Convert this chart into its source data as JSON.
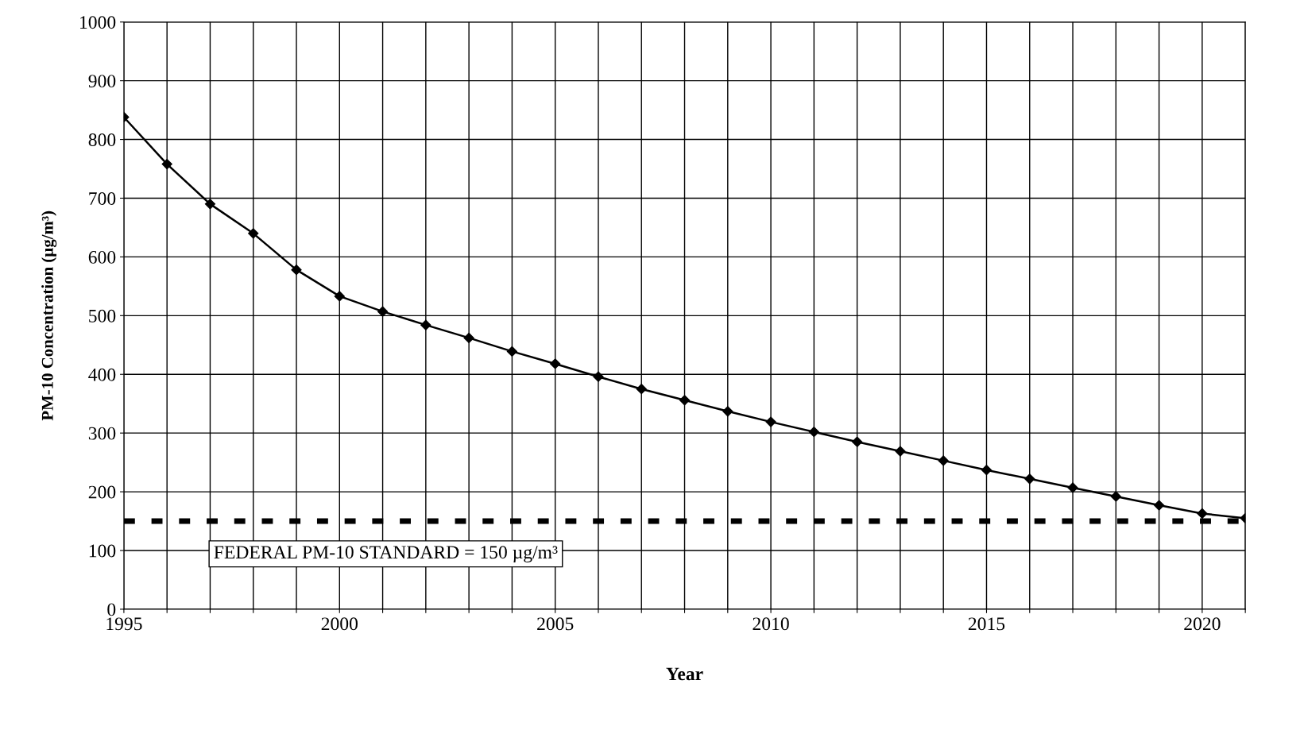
{
  "chart_data": {
    "type": "line",
    "xlabel": "Year",
    "ylabel": "PM-10 Concentration (µg/m³)",
    "x": [
      1995,
      1996,
      1997,
      1998,
      1999,
      2000,
      2001,
      2002,
      2003,
      2004,
      2005,
      2006,
      2007,
      2008,
      2009,
      2010,
      2011,
      2012,
      2013,
      2014,
      2015,
      2016,
      2017,
      2018,
      2019,
      2020,
      2021
    ],
    "series": [
      {
        "color": "#000000",
        "values": [
          838,
          758,
          690,
          640,
          578,
          533,
          507,
          484,
          462,
          439,
          418,
          396,
          375,
          356,
          337,
          319,
          302,
          285,
          269,
          253,
          237,
          222,
          207,
          192,
          177,
          163,
          155
        ]
      }
    ],
    "marker": "diamond",
    "line_style": "solid",
    "grid": true,
    "legend": false,
    "xlim": [
      1995,
      2021
    ],
    "ylim": [
      0,
      1000
    ],
    "xticks": [
      1995,
      {
        "value": 1996,
        "label": null
      },
      {
        "value": 1997,
        "label": null
      },
      {
        "value": 1998,
        "label": null
      },
      {
        "value": 1999,
        "label": null
      },
      2000,
      {
        "value": 2001,
        "label": null
      },
      {
        "value": 2002,
        "label": null
      },
      {
        "value": 2003,
        "label": null
      },
      {
        "value": 2004,
        "label": null
      },
      2005,
      {
        "value": 2006,
        "label": null
      },
      {
        "value": 2007,
        "label": null
      },
      {
        "value": 2008,
        "label": null
      },
      {
        "value": 2009,
        "label": null
      },
      2010,
      {
        "value": 2011,
        "label": null
      },
      {
        "value": 2012,
        "label": null
      },
      {
        "value": 2013,
        "label": null
      },
      {
        "value": 2014,
        "label": null
      },
      2015,
      {
        "value": 2016,
        "label": null
      },
      {
        "value": 2017,
        "label": null
      },
      {
        "value": 2018,
        "label": null
      },
      {
        "value": 2019,
        "label": null
      },
      2020,
      {
        "value": 2021,
        "label": null
      }
    ],
    "yticks": [
      0,
      100,
      200,
      300,
      400,
      500,
      600,
      700,
      800,
      900,
      1000
    ],
    "ref_lines": [
      {
        "axis": "y",
        "value": 150,
        "label": "FEDERAL PM-10 STANDARD = 150 µg/m³",
        "color": "#000000",
        "line_style": "dashed"
      }
    ]
  }
}
